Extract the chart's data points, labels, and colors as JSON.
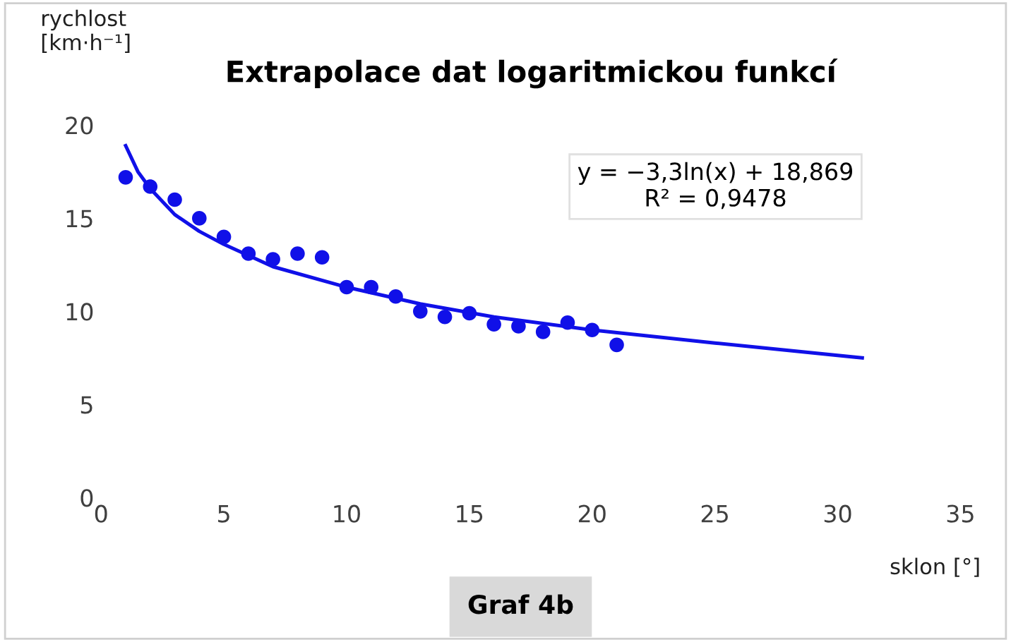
{
  "chart_data": {
    "type": "scatter",
    "title": "Extrapolace dat logaritmickou funkcí",
    "ylabel": "rychlost\n[km·h⁻¹]",
    "xlabel": "sklon [°]",
    "series": [
      {
        "color": "#1010e8",
        "marker": "circle",
        "x": [
          1,
          2,
          3,
          4,
          5,
          6,
          7,
          8,
          9,
          10,
          11,
          12,
          13,
          14,
          15,
          16,
          17,
          18,
          19,
          20,
          21
        ],
        "values": [
          17.2,
          16.7,
          16.0,
          15.0,
          14.0,
          13.1,
          12.8,
          13.1,
          12.9,
          11.3,
          11.3,
          10.8,
          10.0,
          9.7,
          9.9,
          9.3,
          9.2,
          8.9,
          9.4,
          9.0,
          8.2
        ]
      },
      {
        "type": "line",
        "color": "#1010e8",
        "marker": "none",
        "x": [
          1,
          1.5,
          2,
          3,
          4,
          5,
          7,
          10,
          13,
          16,
          20,
          25,
          31
        ],
        "values": [
          18.9,
          17.5,
          16.6,
          15.2,
          14.3,
          13.6,
          12.4,
          11.3,
          10.4,
          9.7,
          9.0,
          8.3,
          7.5
        ]
      }
    ],
    "xlim": [
      0,
      35
    ],
    "xticks": [
      0,
      5,
      10,
      15,
      20,
      25,
      30,
      35
    ],
    "ylim": [
      0,
      20
    ],
    "yticks": [
      0,
      5,
      10,
      15,
      20
    ],
    "grid": false,
    "legend": false,
    "annotations": [
      "y = −3,3ln(x) + 18,869\nR² = 0,9478",
      "Graf 4b"
    ]
  }
}
